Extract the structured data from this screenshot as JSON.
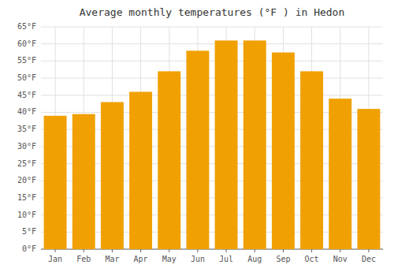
{
  "chart_data": {
    "type": "bar",
    "title": "Average monthly temperatures (°F ) in Hedon",
    "categories": [
      "Jan",
      "Feb",
      "Mar",
      "Apr",
      "May",
      "Jun",
      "Jul",
      "Aug",
      "Sep",
      "Oct",
      "Nov",
      "Dec"
    ],
    "values": [
      39,
      39.5,
      43,
      46,
      52,
      58,
      61,
      61,
      57.5,
      52,
      44,
      41
    ],
    "color": "#F0A000",
    "ylim": [
      0,
      65
    ],
    "yticks": [
      {
        "value": 0,
        "label": "0°F"
      },
      {
        "value": 5,
        "label": "5°F"
      },
      {
        "value": 10,
        "label": "10°F"
      },
      {
        "value": 15,
        "label": "15°F"
      },
      {
        "value": 20,
        "label": "20°F"
      },
      {
        "value": 25,
        "label": "25°F"
      },
      {
        "value": 30,
        "label": "30°F"
      },
      {
        "value": 35,
        "label": "35°F"
      },
      {
        "value": 40,
        "label": "40°F"
      },
      {
        "value": 45,
        "label": "45°F"
      },
      {
        "value": 50,
        "label": "50°F"
      },
      {
        "value": 55,
        "label": "55°F"
      },
      {
        "value": 60,
        "label": "60°F"
      },
      {
        "value": 65,
        "label": "65°F"
      }
    ],
    "grid": true
  }
}
